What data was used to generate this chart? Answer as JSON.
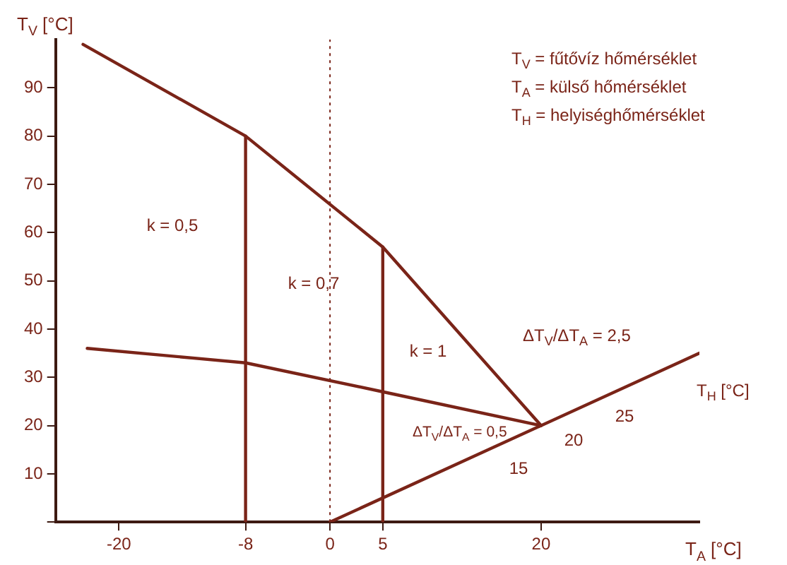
{
  "chart_data": {
    "type": "line",
    "xlabel": "T$_{A}$ [°C]",
    "ylabel": "T$_{V}$ [°C]",
    "xlim": [
      -26,
      35
    ],
    "ylim": [
      0,
      100
    ],
    "xticks": [
      -20,
      -8,
      0,
      5,
      20
    ],
    "yticks": [
      {
        "value": 0,
        "label": null
      },
      10,
      20,
      30,
      40,
      50,
      60,
      70,
      80,
      90
    ],
    "grid": false,
    "legend": false,
    "marker": "none",
    "line_style": "solid",
    "series": [
      {
        "color": "#7a2418",
        "x": [
          -23.4,
          -8,
          5,
          20
        ],
        "values": [
          99,
          80,
          57,
          20
        ]
      },
      {
        "color": "#7a2418",
        "x": [
          -23,
          -8,
          5,
          20
        ],
        "values": [
          36,
          33,
          27,
          20
        ]
      },
      {
        "color": "#7a2418",
        "x": [
          0,
          35
        ],
        "values": [
          0,
          35
        ]
      },
      {
        "color": "#7a2418",
        "x": [
          -8,
          -8
        ],
        "values": [
          0,
          80
        ]
      },
      {
        "color": "#7a2418",
        "x": [
          5,
          5
        ],
        "values": [
          0,
          57
        ]
      }
    ],
    "ref_lines": [
      {
        "axis": "x",
        "value": 0,
        "line_style": "dotted",
        "color": "#7a2418"
      }
    ],
    "annotations": [
      "T$_{V}$ = fűtővíz hőmérséklet",
      "T$_{A}$ = külső hőmérséklet",
      "T$_{H}$ = helyiséghőmérséklet",
      "k = 0,5",
      "k = 0,7",
      "k = 1",
      "ΔT$_{V}$/ΔT$_{A}$ = 2,5",
      "ΔT$_{V}$/ΔT$_{A}$ = 0,5",
      "15",
      "20",
      "25",
      "T$_{H}$ [°C]"
    ]
  }
}
